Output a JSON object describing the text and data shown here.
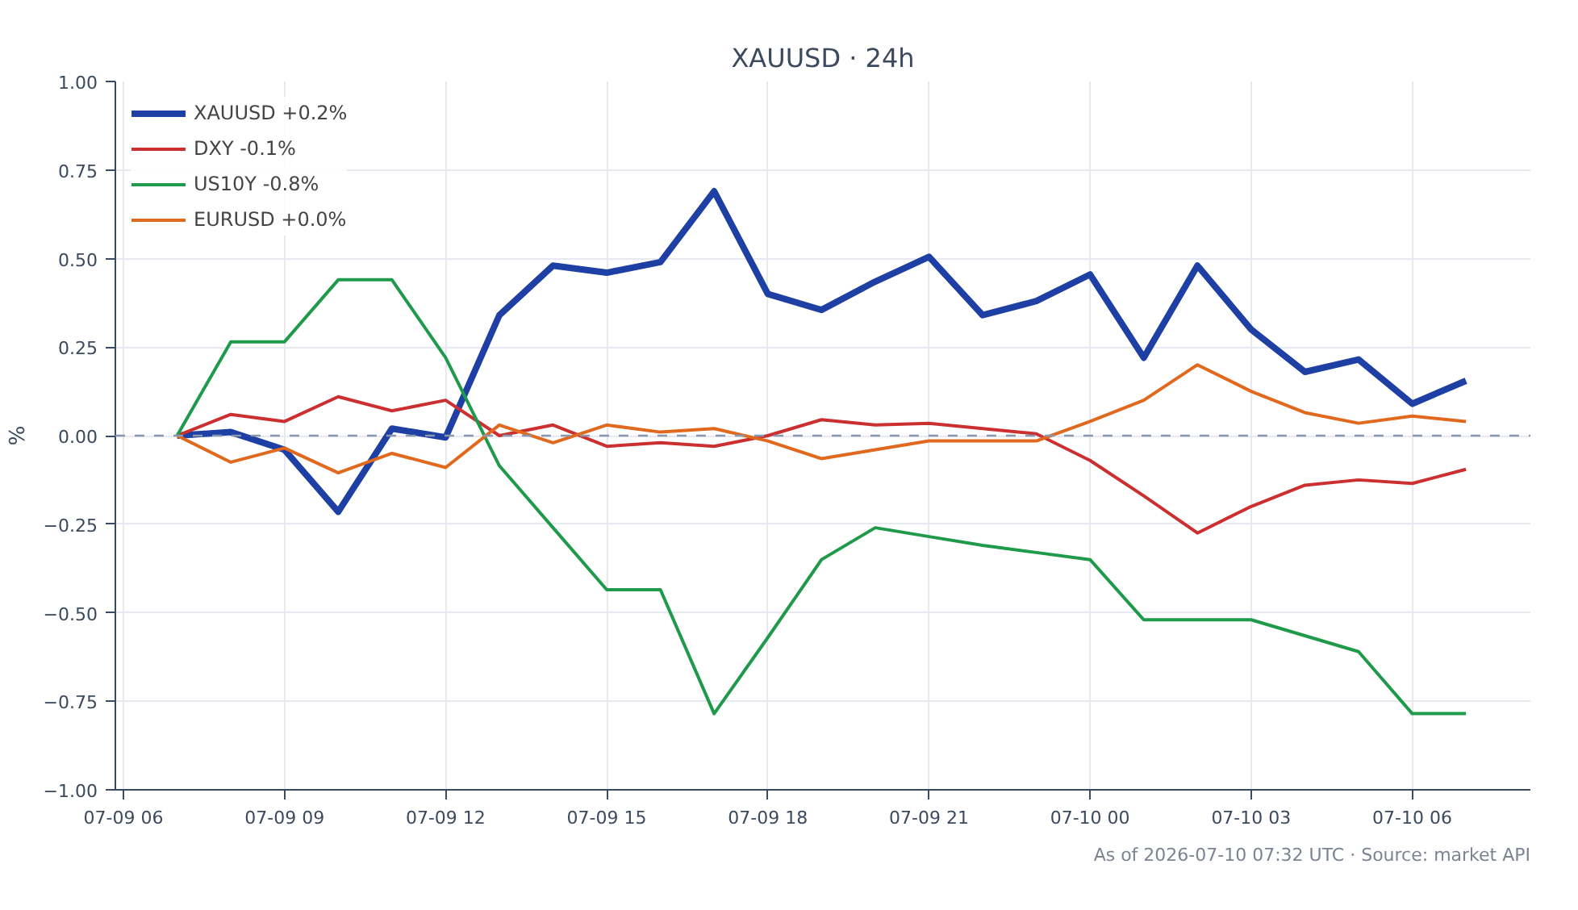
{
  "chart_data": {
    "type": "line",
    "title": "XAUUSD · 24h",
    "ylabel": "%",
    "x": [
      "2026-07-09T07:00",
      "2026-07-09T08:00",
      "2026-07-09T09:00",
      "2026-07-09T10:00",
      "2026-07-09T11:00",
      "2026-07-09T12:00",
      "2026-07-09T13:00",
      "2026-07-09T14:00",
      "2026-07-09T15:00",
      "2026-07-09T16:00",
      "2026-07-09T17:00",
      "2026-07-09T18:00",
      "2026-07-09T19:00",
      "2026-07-09T20:00",
      "2026-07-09T21:00",
      "2026-07-09T22:00",
      "2026-07-09T23:00",
      "2026-07-10T00:00",
      "2026-07-10T01:00",
      "2026-07-10T02:00",
      "2026-07-10T03:00",
      "2026-07-10T04:00",
      "2026-07-10T05:00",
      "2026-07-10T06:00",
      "2026-07-10T07:00"
    ],
    "series": [
      {
        "name": "XAUUSD +0.2%",
        "color": "#1e3fa3",
        "values": [
          0,
          0.01,
          -0.04,
          -0.215,
          0.02,
          -0.005,
          0.34,
          0.48,
          0.46,
          0.49,
          0.69,
          0.4,
          0.355,
          0.435,
          0.505,
          0.34,
          0.38,
          0.455,
          0.22,
          0.48,
          0.3,
          0.18,
          0.215,
          0.09,
          0.155
        ]
      },
      {
        "name": "DXY -0.1%",
        "color": "#cc2f2f",
        "values": [
          0,
          0.06,
          0.04,
          0.11,
          0.07,
          0.1,
          0.0,
          0.03,
          -0.03,
          -0.02,
          -0.03,
          0.0,
          0.045,
          0.03,
          0.035,
          0.02,
          0.005,
          -0.07,
          -0.17,
          -0.275,
          -0.2,
          -0.14,
          -0.125,
          -0.135,
          -0.095
        ]
      },
      {
        "name": "US10Y -0.8%",
        "color": "#1f9a4a",
        "values": [
          0,
          0.265,
          0.265,
          0.44,
          0.44,
          0.22,
          -0.085,
          -0.26,
          -0.435,
          -0.435,
          -0.785,
          -0.57,
          -0.35,
          -0.26,
          -0.285,
          -0.31,
          -0.33,
          -0.35,
          -0.52,
          -0.52,
          -0.52,
          -0.565,
          -0.61,
          -0.785,
          -0.785
        ]
      },
      {
        "name": "EURUSD +0.0%",
        "color": "#e0691d",
        "values": [
          0,
          -0.075,
          -0.035,
          -0.105,
          -0.05,
          -0.09,
          0.03,
          -0.02,
          0.03,
          0.01,
          0.02,
          -0.015,
          -0.065,
          -0.04,
          -0.015,
          -0.015,
          -0.015,
          0.04,
          0.1,
          0.2,
          0.125,
          0.065,
          0.035,
          0.055,
          0.04
        ]
      }
    ],
    "xlim": [
      "2026-07-09T05:51",
      "2026-07-10T08:12"
    ],
    "xticks": [
      {
        "value": "2026-07-09T06:00",
        "label": "07-09 06"
      },
      {
        "value": "2026-07-09T09:00",
        "label": "07-09 09"
      },
      {
        "value": "2026-07-09T12:00",
        "label": "07-09 12"
      },
      {
        "value": "2026-07-09T15:00",
        "label": "07-09 15"
      },
      {
        "value": "2026-07-09T18:00",
        "label": "07-09 18"
      },
      {
        "value": "2026-07-09T21:00",
        "label": "07-09 21"
      },
      {
        "value": "2026-07-10T00:00",
        "label": "07-10 00"
      },
      {
        "value": "2026-07-10T03:00",
        "label": "07-10 03"
      },
      {
        "value": "2026-07-10T06:00",
        "label": "07-10 06"
      }
    ],
    "ylim": [
      -1,
      1
    ],
    "yticks": [
      {
        "value": -1,
        "label": "−1.00"
      },
      {
        "value": -0.75,
        "label": "−0.75"
      },
      {
        "value": -0.5,
        "label": "−0.50"
      },
      {
        "value": -0.25,
        "label": "−0.25"
      },
      {
        "value": 0,
        "label": "0.00"
      },
      {
        "value": 0.25,
        "label": "0.25"
      },
      {
        "value": 0.5,
        "label": "0.50"
      },
      {
        "value": 0.75,
        "label": "0.75"
      },
      {
        "value": 1,
        "label": "1.00"
      }
    ],
    "ref_lines": [
      {
        "axis": "y",
        "value": 0,
        "color": "#8a98ad",
        "line_style": "dashed"
      }
    ],
    "grid": true,
    "legend": "top left",
    "marker": "none",
    "line_style": "solid",
    "annotations": [
      "As of 2026-07-10 07:32 UTC · Source: market API"
    ]
  }
}
